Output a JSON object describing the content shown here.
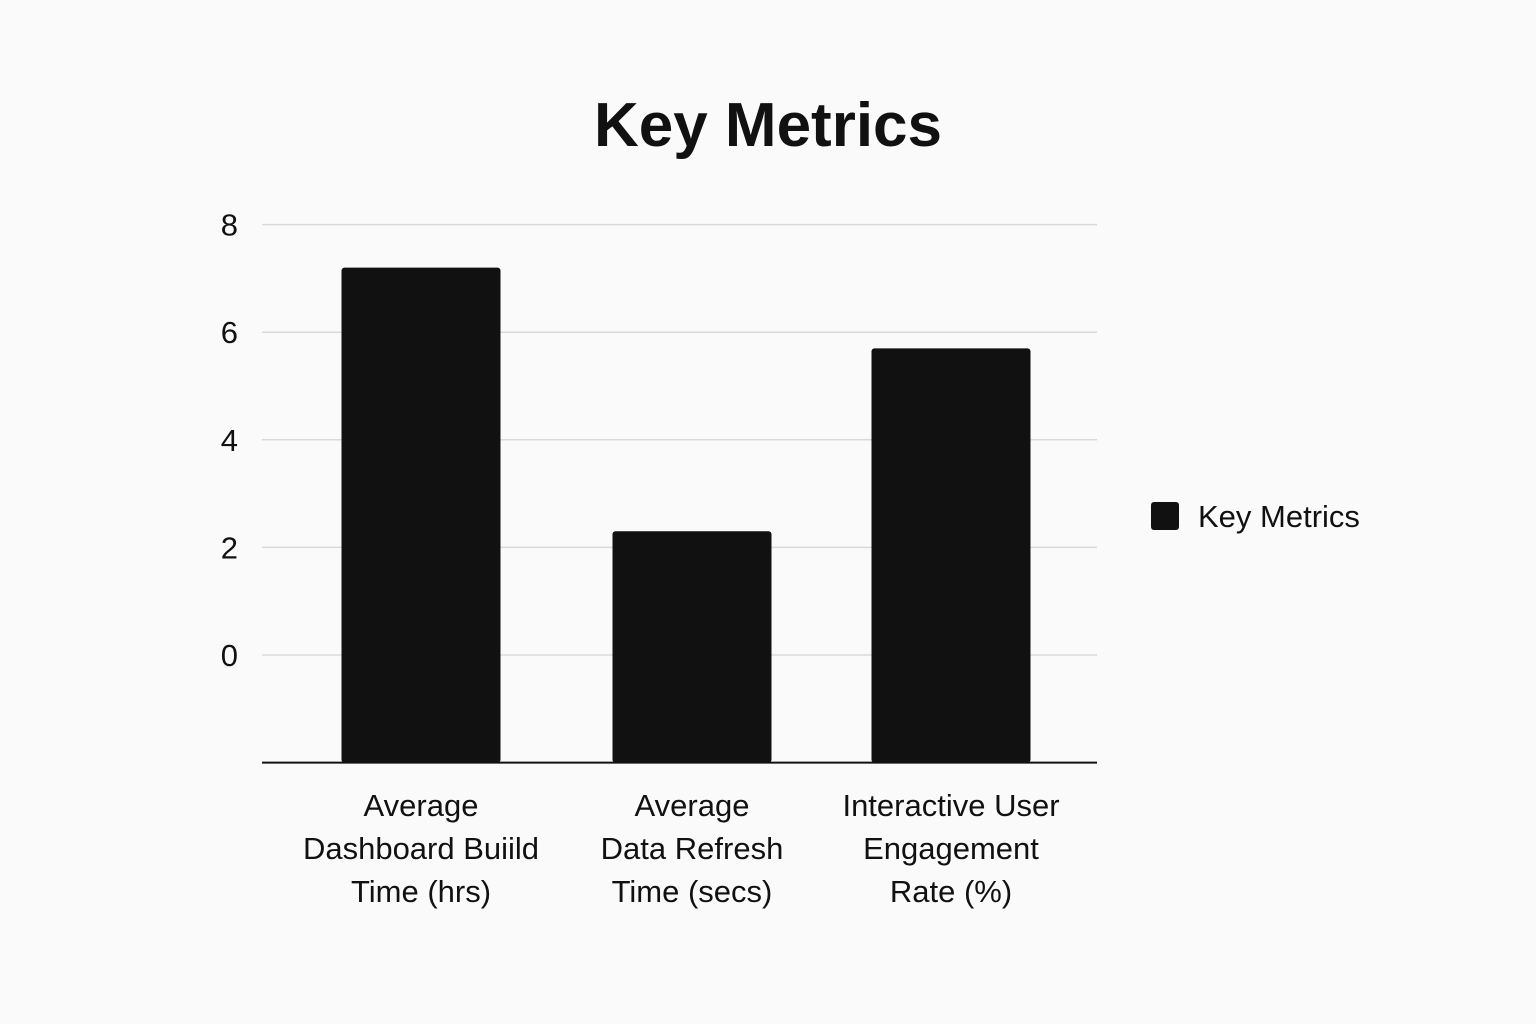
{
  "chart_data": {
    "type": "bar",
    "title": "Key Metrics",
    "categories": [
      [
        "Average",
        "Dashboard Buiild",
        "Time (hrs)"
      ],
      [
        "Average",
        "Data Refresh",
        "Time (secs)"
      ],
      [
        "Interactive User",
        "Engagement",
        "Rate (%)"
      ]
    ],
    "series": [
      {
        "name": "Key Metrics",
        "values": [
          7.2,
          2.3,
          5.7
        ]
      }
    ],
    "yticks": [
      "8",
      "6",
      "4",
      "2",
      "0"
    ],
    "ytick_values": [
      8,
      6,
      4,
      2,
      0
    ],
    "ylim": [
      -2,
      8
    ],
    "grid": true,
    "legend_position": "right"
  },
  "colors": {
    "bar": "#111111",
    "grid": "#d9d9d9",
    "axis": "#111111",
    "text": "#111111",
    "background": "#fafafa"
  }
}
